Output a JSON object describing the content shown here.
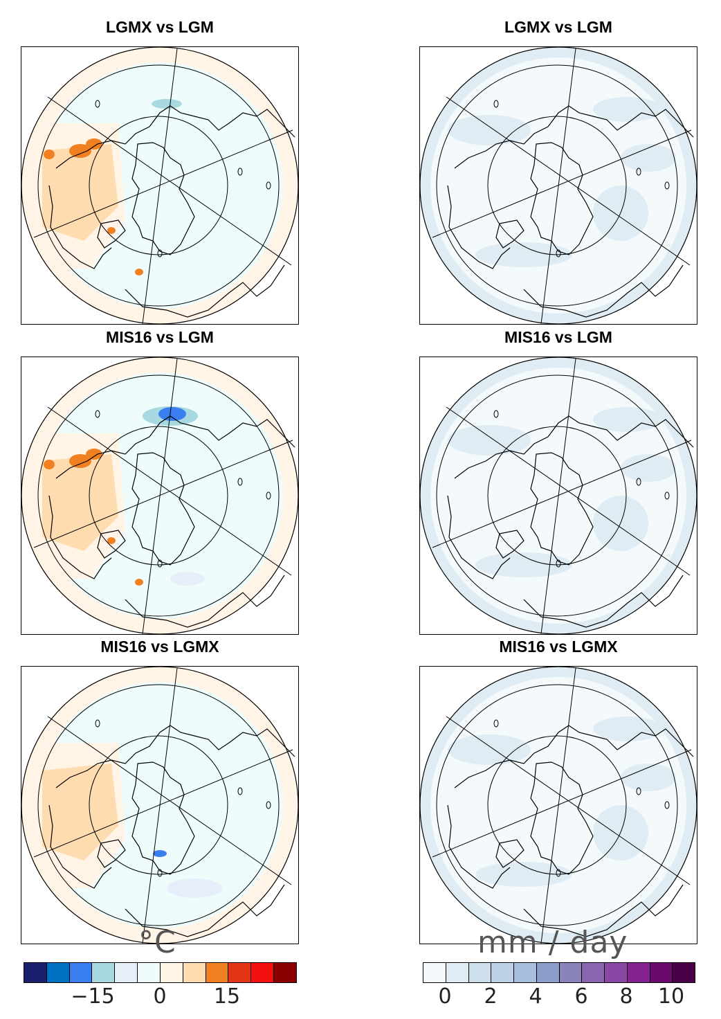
{
  "panels": {
    "left": [
      {
        "title": "LGMX vs LGM"
      },
      {
        "title": "MIS16 vs LGM"
      },
      {
        "title": "MIS16 vs LGMX"
      }
    ],
    "right": [
      {
        "title": "LGMX vs LGM"
      },
      {
        "title": "MIS16 vs LGM"
      },
      {
        "title": "MIS16 vs LGMX"
      }
    ]
  },
  "colorbars": {
    "temperature": {
      "unit": "°C",
      "colors": [
        "#1a1f6e",
        "#0070c0",
        "#3a7fef",
        "#a8d8e0",
        "#e6eefa",
        "#eefcfc",
        "#fff4e6",
        "#ffdcb0",
        "#f08020",
        "#e43418",
        "#f51010",
        "#8a0000"
      ],
      "ticks": [
        "−15",
        "0",
        "15"
      ]
    },
    "precipitation": {
      "unit": "mm / day",
      "colors": [
        "#f4fafc",
        "#e0ecf4",
        "#cedfec",
        "#bdd1e6",
        "#a5bfdc",
        "#8d9ecc",
        "#8a84bd",
        "#8a66b0",
        "#8a48a4",
        "#842292",
        "#6a0a6e",
        "#4a0046"
      ],
      "ticks": [
        "0",
        "2",
        "4",
        "6",
        "8",
        "10"
      ]
    }
  }
}
